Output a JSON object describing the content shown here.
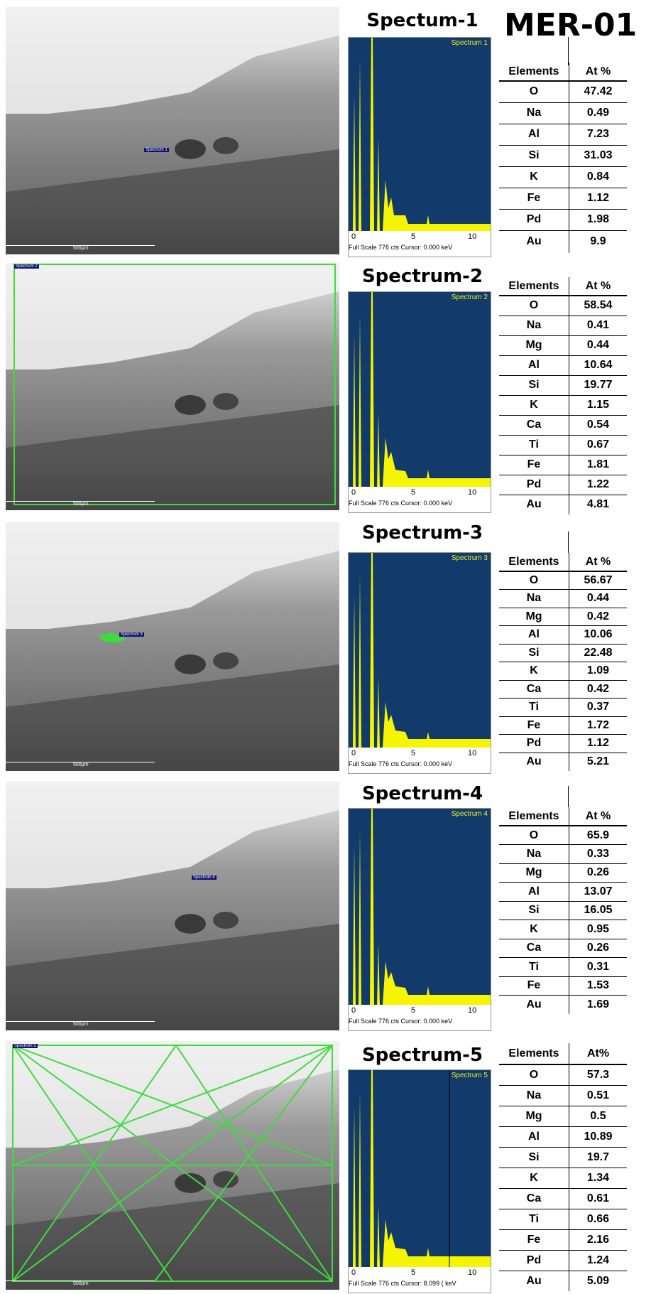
{
  "sample_id": "MER-01",
  "sem_scale_label": "500µm",
  "spectrum_axis": {
    "ticks": [
      "0",
      "5",
      "10"
    ],
    "unit": "keV",
    "footer": "Full Scale 776 cts Cursor: 0.000"
  },
  "spectrum5_axis_footer": "Full Scale 776 cts Cursor: 8.099",
  "colors": {
    "spectrum_bg": "#123a6a",
    "spectrum_fill": "#f5f500",
    "roi_green": "#3ddc3d"
  },
  "sections": [
    {
      "title": "Spectum-1",
      "plot_label": "Spectrum 1",
      "sem_marker": "Spectrum 1",
      "header": {
        "element": "Elements",
        "atomic": "At %"
      },
      "rows": [
        {
          "el": "O",
          "at": "47.42"
        },
        {
          "el": "Na",
          "at": "0.49"
        },
        {
          "el": "Al",
          "at": "7.23"
        },
        {
          "el": "Si",
          "at": "31.03"
        },
        {
          "el": "K",
          "at": "0.84"
        },
        {
          "el": "Fe",
          "at": "1.12"
        },
        {
          "el": "Pd",
          "at": "1.98"
        },
        {
          "el": "Au",
          "at": "9.9"
        }
      ]
    },
    {
      "title": "Spectrum-2",
      "plot_label": "Spectrum 2",
      "sem_marker": "Spectrum 2",
      "header": {
        "element": "Elements",
        "atomic": "At %"
      },
      "rows": [
        {
          "el": "O",
          "at": "58.54"
        },
        {
          "el": "Na",
          "at": "0.41"
        },
        {
          "el": "Mg",
          "at": "0.44"
        },
        {
          "el": "Al",
          "at": "10.64"
        },
        {
          "el": "Si",
          "at": "19.77"
        },
        {
          "el": "K",
          "at": "1.15"
        },
        {
          "el": "Ca",
          "at": "0.54"
        },
        {
          "el": "Ti",
          "at": "0.67"
        },
        {
          "el": "Fe",
          "at": "1.81"
        },
        {
          "el": "Pd",
          "at": "1.22"
        },
        {
          "el": "Au",
          "at": "4.81"
        }
      ]
    },
    {
      "title": "Spectrum-3",
      "plot_label": "Spectrum 3",
      "sem_marker": "Spectrum 3",
      "header": {
        "element": "Elements",
        "atomic": "At %"
      },
      "rows": [
        {
          "el": "O",
          "at": "56.67"
        },
        {
          "el": "Na",
          "at": "0.44"
        },
        {
          "el": "Mg",
          "at": "0.42"
        },
        {
          "el": "Al",
          "at": "10.06"
        },
        {
          "el": "Si",
          "at": "22.48"
        },
        {
          "el": "K",
          "at": "1.09"
        },
        {
          "el": "Ca",
          "at": "0.42"
        },
        {
          "el": "Ti",
          "at": "0.37"
        },
        {
          "el": "Fe",
          "at": "1.72"
        },
        {
          "el": "Pd",
          "at": "1.12"
        },
        {
          "el": "Au",
          "at": "5.21"
        }
      ]
    },
    {
      "title": "Spectrum-4",
      "plot_label": "Spectrum 4",
      "sem_marker": "Spectrum 4",
      "header": {
        "element": "Elements",
        "atomic": "At %"
      },
      "rows": [
        {
          "el": "O",
          "at": "65.9"
        },
        {
          "el": "Na",
          "at": "0.33"
        },
        {
          "el": "Mg",
          "at": "0.26"
        },
        {
          "el": "Al",
          "at": "13.07"
        },
        {
          "el": "Si",
          "at": "16.05"
        },
        {
          "el": "K",
          "at": "0.95"
        },
        {
          "el": "Ca",
          "at": "0.26"
        },
        {
          "el": "Ti",
          "at": "0.31"
        },
        {
          "el": "Fe",
          "at": "1.53"
        },
        {
          "el": "Au",
          "at": "1.69"
        }
      ]
    },
    {
      "title": "Spectrum-5",
      "plot_label": "Spectrum 5",
      "sem_marker": "Spectrum 5",
      "header": {
        "element": "Elements",
        "atomic": "At%"
      },
      "rows": [
        {
          "el": "O",
          "at": "57.3"
        },
        {
          "el": "Na",
          "at": "0.51"
        },
        {
          "el": "Mg",
          "at": "0.5"
        },
        {
          "el": "Al",
          "at": "10.89"
        },
        {
          "el": "Si",
          "at": "19.7"
        },
        {
          "el": "K",
          "at": "1.34"
        },
        {
          "el": "Ca",
          "at": "0.61"
        },
        {
          "el": "Ti",
          "at": "0.66"
        },
        {
          "el": "Fe",
          "at": "2.16"
        },
        {
          "el": "Pd",
          "at": "1.24"
        },
        {
          "el": "Au",
          "at": "5.09"
        }
      ]
    }
  ]
}
